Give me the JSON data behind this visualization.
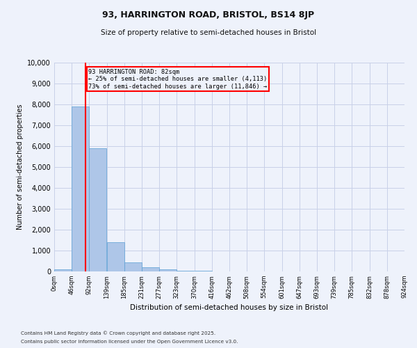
{
  "title1": "93, HARRINGTON ROAD, BRISTOL, BS14 8JP",
  "title2": "Size of property relative to semi-detached houses in Bristol",
  "xlabel": "Distribution of semi-detached houses by size in Bristol",
  "ylabel": "Number of semi-detached properties",
  "bar_color": "#aec6e8",
  "bar_edge_color": "#5a9fd4",
  "bar_left_edges": [
    0,
    46,
    92,
    139,
    185,
    231,
    277,
    323,
    370,
    416,
    462,
    508,
    554,
    601,
    647,
    693,
    739,
    785,
    832,
    878
  ],
  "bar_widths": [
    46,
    46,
    46,
    46,
    46,
    46,
    46,
    46,
    46,
    46,
    46,
    46,
    46,
    46,
    46,
    46,
    46,
    46,
    46,
    46
  ],
  "bar_heights": [
    100,
    7900,
    5900,
    1400,
    450,
    200,
    100,
    50,
    20,
    10,
    5,
    5,
    5,
    5,
    5,
    5,
    5,
    5,
    5,
    5
  ],
  "xtick_labels": [
    "0sqm",
    "46sqm",
    "92sqm",
    "139sqm",
    "185sqm",
    "231sqm",
    "277sqm",
    "323sqm",
    "370sqm",
    "416sqm",
    "462sqm",
    "508sqm",
    "554sqm",
    "601sqm",
    "647sqm",
    "693sqm",
    "739sqm",
    "785sqm",
    "832sqm",
    "878sqm",
    "924sqm"
  ],
  "xtick_positions": [
    0,
    46,
    92,
    139,
    185,
    231,
    277,
    323,
    370,
    416,
    462,
    508,
    554,
    601,
    647,
    693,
    739,
    785,
    832,
    878,
    924
  ],
  "ylim": [
    0,
    10000
  ],
  "xlim": [
    0,
    924
  ],
  "property_size": 82,
  "annotation_title": "93 HARRINGTON ROAD: 82sqm",
  "annotation_line1": "← 25% of semi-detached houses are smaller (4,113)",
  "annotation_line2": "73% of semi-detached houses are larger (11,846) →",
  "red_line_color": "#ff0000",
  "footer1": "Contains HM Land Registry data © Crown copyright and database right 2025.",
  "footer2": "Contains public sector information licensed under the Open Government Licence v3.0.",
  "background_color": "#eef2fb",
  "grid_color": "#c8d0e8"
}
